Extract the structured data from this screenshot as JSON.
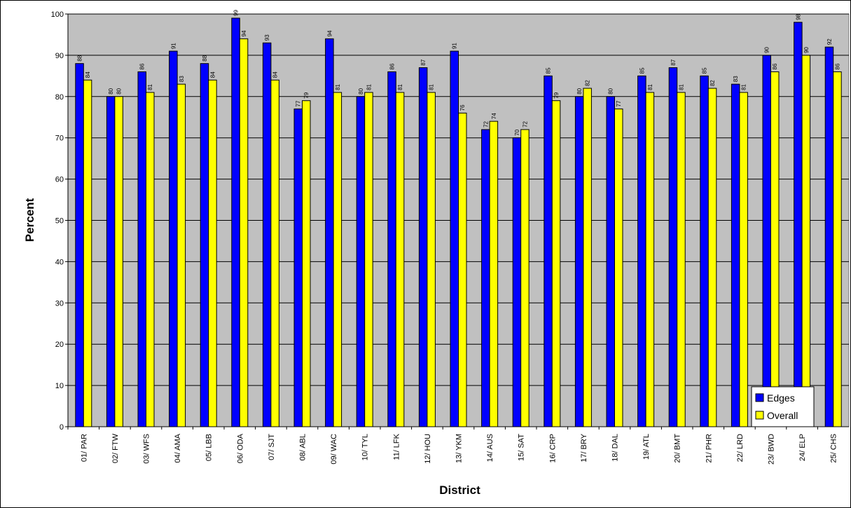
{
  "chart_data": {
    "type": "bar",
    "title": "",
    "xlabel": "District",
    "ylabel": "Percent",
    "ylim": [
      0,
      100
    ],
    "yticks": [
      0,
      10,
      20,
      30,
      40,
      50,
      60,
      70,
      80,
      90,
      100
    ],
    "grid": true,
    "legend_position": "bottom-right",
    "categories": [
      "01/ PAR",
      "02/ FTW",
      "03/ WFS",
      "04/ AMA",
      "05/ LBB",
      "06/ ODA",
      "07/ SJT",
      "08/ ABL",
      "09/ WAC",
      "10/ TYL",
      "11/ LFK",
      "12/ HOU",
      "13/ YKM",
      "14/ AUS",
      "15/ SAT",
      "16/ CRP",
      "17/ BRY",
      "18/ DAL",
      "19/ ATL",
      "20/ BMT",
      "21/ PHR",
      "22/ LRD",
      "23/ BWD",
      "24/ ELP",
      "25/ CHS"
    ],
    "series": [
      {
        "name": "Edges",
        "color": "#0000ff",
        "values": [
          88,
          80,
          86,
          91,
          88,
          99,
          93,
          77,
          94,
          80,
          86,
          87,
          91,
          72,
          70,
          85,
          80,
          80,
          85,
          87,
          85,
          83,
          90,
          98,
          92
        ]
      },
      {
        "name": "Overall",
        "color": "#ffff00",
        "values": [
          84,
          80,
          81,
          83,
          84,
          94,
          84,
          79,
          81,
          81,
          81,
          81,
          76,
          74,
          72,
          79,
          82,
          77,
          81,
          81,
          82,
          81,
          86,
          90,
          86
        ]
      }
    ],
    "colors": {
      "plot_background": "#c0c0c0",
      "grid": "#000000"
    }
  }
}
